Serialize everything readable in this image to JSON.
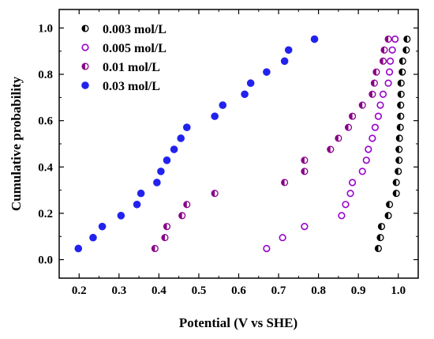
{
  "chart_data": {
    "type": "scatter",
    "xlabel": "Potential (V vs SHE)",
    "ylabel": "Cumulative probability",
    "xlim": [
      0.15,
      1.05
    ],
    "ylim": [
      -0.08,
      1.08
    ],
    "xticks": [
      "0.2",
      "0.3",
      "0.4",
      "0.5",
      "0.6",
      "0.7",
      "0.8",
      "0.9",
      "1.0"
    ],
    "yticks": [
      "0.0",
      "0.2",
      "0.4",
      "0.6",
      "0.8",
      "1.0"
    ],
    "legend_position": "top-left",
    "series": [
      {
        "name": "0.003 mol/L",
        "color": "#000000",
        "marker": "half-filled-circle",
        "x": [
          0.95,
          0.955,
          0.958,
          0.975,
          0.978,
          0.995,
          0.995,
          1.0,
          1.002,
          1.002,
          1.003,
          1.005,
          1.006,
          1.006,
          1.007,
          1.007,
          1.01,
          1.011,
          1.02,
          1.022
        ],
        "y": [
          0.048,
          0.095,
          0.143,
          0.19,
          0.238,
          0.286,
          0.333,
          0.381,
          0.429,
          0.476,
          0.524,
          0.571,
          0.619,
          0.667,
          0.714,
          0.762,
          0.81,
          0.857,
          0.905,
          0.952
        ]
      },
      {
        "name": "0.005 mol/L",
        "color": "#9900cc",
        "marker": "open-circle",
        "x": [
          0.67,
          0.71,
          0.765,
          0.858,
          0.868,
          0.88,
          0.885,
          0.91,
          0.92,
          0.925,
          0.935,
          0.942,
          0.95,
          0.955,
          0.962,
          0.975,
          0.978,
          0.98,
          0.985,
          0.992
        ],
        "y": [
          0.048,
          0.095,
          0.143,
          0.19,
          0.238,
          0.286,
          0.333,
          0.381,
          0.429,
          0.476,
          0.524,
          0.571,
          0.619,
          0.667,
          0.714,
          0.762,
          0.81,
          0.857,
          0.905,
          0.952
        ]
      },
      {
        "name": "0.01 mol/L",
        "color": "#880088",
        "marker": "half-filled-circle",
        "x": [
          0.39,
          0.415,
          0.42,
          0.458,
          0.47,
          0.54,
          0.715,
          0.765,
          0.765,
          0.83,
          0.85,
          0.875,
          0.885,
          0.91,
          0.935,
          0.94,
          0.945,
          0.962,
          0.965,
          0.975
        ],
        "y": [
          0.048,
          0.095,
          0.143,
          0.19,
          0.238,
          0.286,
          0.333,
          0.381,
          0.429,
          0.476,
          0.524,
          0.571,
          0.619,
          0.667,
          0.714,
          0.762,
          0.81,
          0.857,
          0.905,
          0.952
        ]
      },
      {
        "name": "0.03 mol/L",
        "color": "#2222ee",
        "marker": "filled-circle",
        "x": [
          0.198,
          0.235,
          0.258,
          0.305,
          0.345,
          0.355,
          0.395,
          0.405,
          0.42,
          0.438,
          0.455,
          0.47,
          0.54,
          0.56,
          0.615,
          0.63,
          0.67,
          0.715,
          0.725,
          0.79
        ],
        "y": [
          0.048,
          0.095,
          0.143,
          0.19,
          0.238,
          0.286,
          0.333,
          0.381,
          0.429,
          0.476,
          0.524,
          0.571,
          0.619,
          0.667,
          0.714,
          0.762,
          0.81,
          0.857,
          0.905,
          0.952
        ]
      }
    ]
  }
}
